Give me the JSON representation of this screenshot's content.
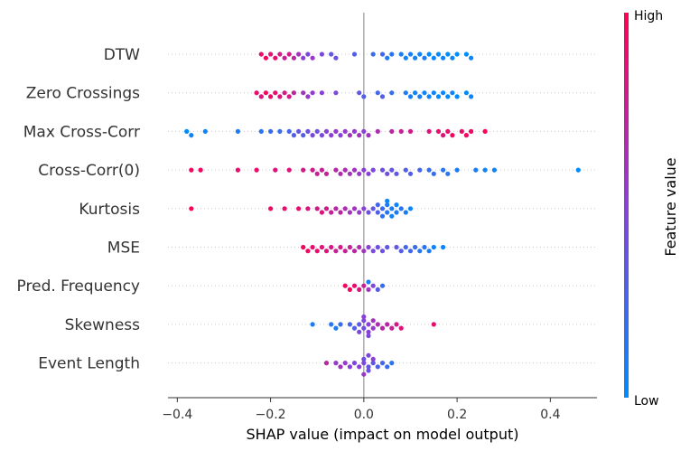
{
  "chart_data": {
    "type": "scatter",
    "subtype": "shap-beeswarm",
    "title": "",
    "xlabel": "SHAP value (impact on model output)",
    "ylabel": "",
    "xlim": [
      -0.42,
      0.5
    ],
    "xticks": [
      -0.4,
      -0.2,
      0.0,
      0.2,
      0.4
    ],
    "xtick_labels": [
      "−0.4",
      "−0.2",
      "0.0",
      "0.2",
      "0.4"
    ],
    "zero_line": 0.0,
    "colorbar": {
      "title": "Feature value",
      "high_label": "High",
      "low_label": "Low",
      "low_color": "#008bfb",
      "high_color": "#ff0052"
    },
    "features": [
      {
        "name": "DTW",
        "points": [
          [
            -0.22,
            0.9
          ],
          [
            -0.21,
            0.95
          ],
          [
            -0.2,
            0.85
          ],
          [
            -0.19,
            0.9
          ],
          [
            -0.18,
            0.8
          ],
          [
            -0.17,
            0.75
          ],
          [
            -0.16,
            0.8
          ],
          [
            -0.15,
            0.7
          ],
          [
            -0.14,
            0.6
          ],
          [
            -0.13,
            0.5
          ],
          [
            -0.12,
            0.45
          ],
          [
            -0.11,
            0.55
          ],
          [
            -0.09,
            0.45
          ],
          [
            -0.07,
            0.35
          ],
          [
            -0.06,
            0.4
          ],
          [
            0.02,
            0.2
          ],
          [
            0.04,
            0.25
          ],
          [
            0.05,
            0.1
          ],
          [
            0.06,
            0.15
          ],
          [
            0.08,
            0.1
          ],
          [
            0.09,
            0.05
          ],
          [
            0.1,
            0.1
          ],
          [
            0.11,
            0.05
          ],
          [
            0.12,
            0.05
          ],
          [
            0.13,
            0.1
          ],
          [
            0.14,
            0.0
          ],
          [
            0.15,
            0.05
          ],
          [
            0.16,
            0.0
          ],
          [
            0.17,
            0.05
          ],
          [
            0.18,
            0.0
          ],
          [
            0.19,
            0.05
          ],
          [
            0.2,
            0.0
          ],
          [
            0.22,
            0.0
          ],
          [
            0.23,
            0.05
          ],
          [
            -0.02,
            0.3
          ]
        ]
      },
      {
        "name": "Zero Crossings",
        "points": [
          [
            -0.23,
            0.9
          ],
          [
            -0.22,
            0.85
          ],
          [
            -0.21,
            0.95
          ],
          [
            -0.2,
            0.9
          ],
          [
            -0.19,
            0.9
          ],
          [
            -0.18,
            0.85
          ],
          [
            -0.17,
            0.8
          ],
          [
            -0.16,
            0.8
          ],
          [
            -0.15,
            0.7
          ],
          [
            -0.13,
            0.6
          ],
          [
            -0.12,
            0.55
          ],
          [
            -0.11,
            0.55
          ],
          [
            -0.09,
            0.5
          ],
          [
            -0.06,
            0.45
          ],
          [
            -0.01,
            0.35
          ],
          [
            0.0,
            0.3
          ],
          [
            0.03,
            0.25
          ],
          [
            0.04,
            0.3
          ],
          [
            0.06,
            0.2
          ],
          [
            0.09,
            0.1
          ],
          [
            0.1,
            0.1
          ],
          [
            0.11,
            0.05
          ],
          [
            0.12,
            0.1
          ],
          [
            0.13,
            0.05
          ],
          [
            0.14,
            0.05
          ],
          [
            0.15,
            0.05
          ],
          [
            0.16,
            0.0
          ],
          [
            0.17,
            0.05
          ],
          [
            0.18,
            0.0
          ],
          [
            0.19,
            0.05
          ],
          [
            0.2,
            0.0
          ],
          [
            0.22,
            0.0
          ],
          [
            0.23,
            0.05
          ]
        ]
      },
      {
        "name": "Max Cross-Corr",
        "points": [
          [
            -0.38,
            0.0
          ],
          [
            -0.37,
            0.05
          ],
          [
            -0.34,
            0.05
          ],
          [
            -0.27,
            0.1
          ],
          [
            -0.22,
            0.15
          ],
          [
            -0.2,
            0.2
          ],
          [
            -0.18,
            0.2
          ],
          [
            -0.16,
            0.25
          ],
          [
            -0.15,
            0.3
          ],
          [
            -0.14,
            0.35
          ],
          [
            -0.13,
            0.3
          ],
          [
            -0.12,
            0.4
          ],
          [
            -0.11,
            0.45
          ],
          [
            -0.1,
            0.4
          ],
          [
            -0.09,
            0.45
          ],
          [
            -0.08,
            0.5
          ],
          [
            -0.07,
            0.5
          ],
          [
            -0.06,
            0.55
          ],
          [
            -0.05,
            0.5
          ],
          [
            -0.04,
            0.55
          ],
          [
            -0.03,
            0.6
          ],
          [
            -0.02,
            0.55
          ],
          [
            -0.01,
            0.6
          ],
          [
            0.0,
            0.5
          ],
          [
            0.01,
            0.6
          ],
          [
            0.03,
            0.65
          ],
          [
            0.06,
            0.7
          ],
          [
            0.08,
            0.75
          ],
          [
            0.1,
            0.8
          ],
          [
            0.14,
            0.85
          ],
          [
            0.16,
            0.9
          ],
          [
            0.17,
            0.85
          ],
          [
            0.18,
            0.9
          ],
          [
            0.19,
            0.95
          ],
          [
            0.21,
            0.9
          ],
          [
            0.22,
            0.95
          ],
          [
            0.23,
            0.95
          ],
          [
            0.26,
            1.0
          ]
        ]
      },
      {
        "name": "Cross-Corr(0)",
        "points": [
          [
            -0.37,
            0.95
          ],
          [
            -0.35,
            0.95
          ],
          [
            -0.27,
            0.9
          ],
          [
            -0.23,
            0.9
          ],
          [
            -0.19,
            0.85
          ],
          [
            -0.16,
            0.85
          ],
          [
            -0.13,
            0.8
          ],
          [
            -0.11,
            0.8
          ],
          [
            -0.1,
            0.75
          ],
          [
            -0.09,
            0.75
          ],
          [
            -0.08,
            0.75
          ],
          [
            -0.06,
            0.7
          ],
          [
            -0.05,
            0.65
          ],
          [
            -0.04,
            0.65
          ],
          [
            -0.03,
            0.6
          ],
          [
            -0.02,
            0.6
          ],
          [
            -0.01,
            0.55
          ],
          [
            0.0,
            0.5
          ],
          [
            0.01,
            0.5
          ],
          [
            0.02,
            0.45
          ],
          [
            0.04,
            0.4
          ],
          [
            0.05,
            0.4
          ],
          [
            0.06,
            0.35
          ],
          [
            0.07,
            0.35
          ],
          [
            0.09,
            0.3
          ],
          [
            0.1,
            0.3
          ],
          [
            0.12,
            0.25
          ],
          [
            0.14,
            0.2
          ],
          [
            0.15,
            0.2
          ],
          [
            0.17,
            0.15
          ],
          [
            0.18,
            0.15
          ],
          [
            0.2,
            0.1
          ],
          [
            0.24,
            0.1
          ],
          [
            0.26,
            0.05
          ],
          [
            0.28,
            0.05
          ],
          [
            0.46,
            0.0
          ]
        ]
      },
      {
        "name": "Kurtosis",
        "points": [
          [
            -0.37,
            1.0
          ],
          [
            -0.2,
            0.95
          ],
          [
            -0.17,
            0.9
          ],
          [
            -0.14,
            0.9
          ],
          [
            -0.12,
            0.85
          ],
          [
            -0.1,
            0.8
          ],
          [
            -0.09,
            0.85
          ],
          [
            -0.08,
            0.8
          ],
          [
            -0.07,
            0.75
          ],
          [
            -0.06,
            0.7
          ],
          [
            -0.05,
            0.7
          ],
          [
            -0.04,
            0.65
          ],
          [
            -0.03,
            0.6
          ],
          [
            -0.02,
            0.6
          ],
          [
            -0.01,
            0.55
          ],
          [
            0.0,
            0.5
          ],
          [
            0.01,
            0.4
          ],
          [
            0.02,
            0.35
          ],
          [
            0.03,
            0.3
          ],
          [
            0.03,
            0.25
          ],
          [
            0.04,
            0.2
          ],
          [
            0.04,
            0.15
          ],
          [
            0.05,
            0.15
          ],
          [
            0.05,
            0.1
          ],
          [
            0.05,
            0.05
          ],
          [
            0.06,
            0.1
          ],
          [
            0.06,
            0.05
          ],
          [
            0.07,
            0.1
          ],
          [
            0.07,
            0.05
          ],
          [
            0.08,
            0.15
          ],
          [
            0.09,
            0.1
          ],
          [
            0.1,
            0.05
          ]
        ]
      },
      {
        "name": "MSE",
        "points": [
          [
            -0.13,
            0.95
          ],
          [
            -0.12,
            0.95
          ],
          [
            -0.11,
            0.9
          ],
          [
            -0.1,
            0.9
          ],
          [
            -0.09,
            0.85
          ],
          [
            -0.08,
            0.85
          ],
          [
            -0.07,
            0.8
          ],
          [
            -0.06,
            0.75
          ],
          [
            -0.05,
            0.8
          ],
          [
            -0.04,
            0.75
          ],
          [
            -0.03,
            0.75
          ],
          [
            -0.02,
            0.7
          ],
          [
            -0.01,
            0.65
          ],
          [
            0.0,
            0.6
          ],
          [
            0.01,
            0.5
          ],
          [
            0.02,
            0.45
          ],
          [
            0.03,
            0.4
          ],
          [
            0.04,
            0.4
          ],
          [
            0.05,
            0.35
          ],
          [
            0.07,
            0.35
          ],
          [
            0.08,
            0.3
          ],
          [
            0.09,
            0.25
          ],
          [
            0.1,
            0.25
          ],
          [
            0.11,
            0.2
          ],
          [
            0.12,
            0.15
          ],
          [
            0.13,
            0.15
          ],
          [
            0.14,
            0.1
          ],
          [
            0.15,
            0.05
          ],
          [
            0.17,
            0.05
          ]
        ]
      },
      {
        "name": "Pred. Frequency",
        "points": [
          [
            -0.04,
            0.95
          ],
          [
            -0.03,
            0.95
          ],
          [
            -0.02,
            0.9
          ],
          [
            -0.01,
            0.85
          ],
          [
            0.0,
            0.75
          ],
          [
            0.01,
            0.6
          ],
          [
            0.02,
            0.45
          ],
          [
            0.03,
            0.3
          ],
          [
            0.04,
            0.2
          ],
          [
            0.01,
            0.1
          ]
        ]
      },
      {
        "name": "Skewness",
        "points": [
          [
            -0.11,
            0.1
          ],
          [
            -0.07,
            0.15
          ],
          [
            -0.06,
            0.1
          ],
          [
            -0.05,
            0.2
          ],
          [
            -0.03,
            0.25
          ],
          [
            -0.02,
            0.3
          ],
          [
            -0.01,
            0.35
          ],
          [
            0.0,
            0.4
          ],
          [
            0.0,
            0.45
          ],
          [
            0.01,
            0.5
          ],
          [
            0.01,
            0.5
          ],
          [
            0.02,
            0.55
          ],
          [
            0.02,
            0.6
          ],
          [
            0.03,
            0.65
          ],
          [
            0.04,
            0.7
          ],
          [
            0.05,
            0.7
          ],
          [
            0.06,
            0.75
          ],
          [
            0.07,
            0.8
          ],
          [
            0.08,
            0.85
          ],
          [
            0.15,
            0.9
          ],
          [
            -0.01,
            0.45
          ],
          [
            0.0,
            0.5
          ],
          [
            0.01,
            0.45
          ]
        ]
      },
      {
        "name": "Event Length",
        "points": [
          [
            -0.08,
            0.7
          ],
          [
            -0.06,
            0.55
          ],
          [
            -0.05,
            0.6
          ],
          [
            -0.04,
            0.55
          ],
          [
            -0.03,
            0.5
          ],
          [
            -0.02,
            0.45
          ],
          [
            -0.01,
            0.5
          ],
          [
            0.0,
            0.45
          ],
          [
            0.0,
            0.4
          ],
          [
            0.01,
            0.35
          ],
          [
            0.01,
            0.4
          ],
          [
            0.02,
            0.35
          ],
          [
            0.03,
            0.3
          ],
          [
            0.04,
            0.25
          ],
          [
            0.05,
            0.2
          ],
          [
            0.06,
            0.15
          ],
          [
            0.01,
            0.45
          ],
          [
            0.02,
            0.5
          ],
          [
            0.0,
            0.55
          ]
        ]
      }
    ]
  }
}
